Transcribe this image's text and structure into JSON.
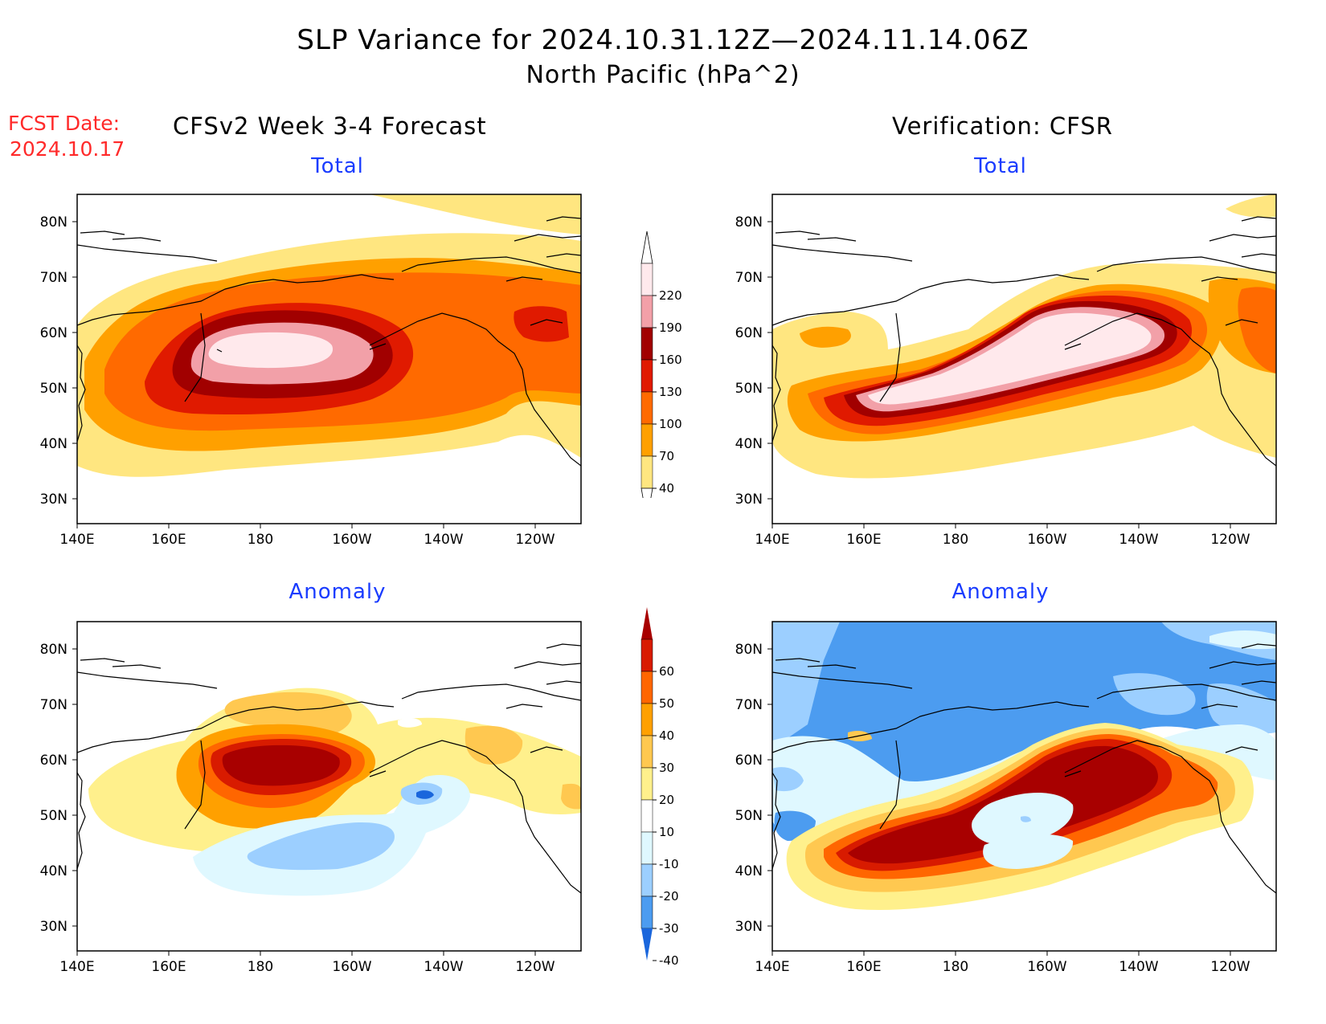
{
  "header": {
    "title": "SLP Variance for 2024.10.31.12Z—2024.11.14.06Z",
    "subtitle": "North Pacific (hPa^2)",
    "fcst_label": "FCST Date:",
    "fcst_date": "2024.10.17",
    "left_column": "CFSv2 Week 3-4 Forecast",
    "right_column": "Verification: CFSR"
  },
  "panels": {
    "tl": {
      "title": "Total"
    },
    "tr": {
      "title": "Total"
    },
    "bl": {
      "title": "Anomaly"
    },
    "br": {
      "title": "Anomaly"
    }
  },
  "axes": {
    "lat_labels": [
      "80N",
      "70N",
      "60N",
      "50N",
      "40N",
      "30N"
    ],
    "lon_labels": [
      "140E",
      "160E",
      "180",
      "160W",
      "140W",
      "120W"
    ]
  },
  "colorbars": {
    "total": {
      "labels": [
        "220",
        "190",
        "160",
        "130",
        "100",
        "70",
        "40"
      ],
      "colors": [
        "#ffffff",
        "#ffe9ec",
        "#f2a0a8",
        "#a10000",
        "#e01a00",
        "#ff6a00",
        "#ffa000",
        "#ffe680",
        "#ffffff"
      ]
    },
    "anomaly": {
      "labels": [
        "60",
        "50",
        "40",
        "30",
        "20",
        "10",
        "-10",
        "-20",
        "-30",
        "-40"
      ],
      "colors": [
        "#a80000",
        "#d81b00",
        "#ff6600",
        "#ffa000",
        "#ffc850",
        "#fff08c",
        "#ffffff",
        "#dff8ff",
        "#9ccfff",
        "#4c9cf0",
        "#1a66dc"
      ]
    }
  }
}
